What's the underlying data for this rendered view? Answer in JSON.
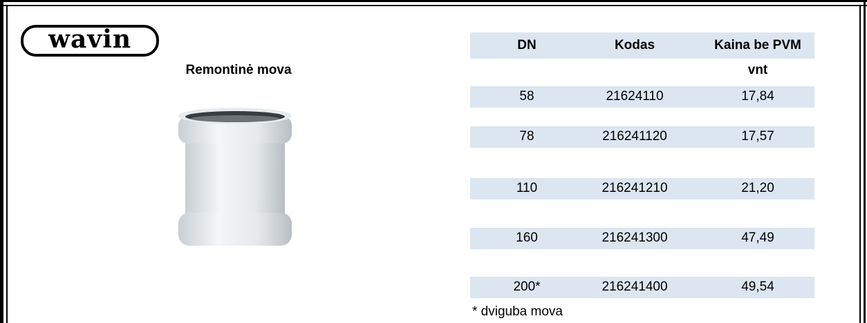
{
  "header": {
    "logo": "wavin",
    "title": "Remontinė mova"
  },
  "table": {
    "columns": [
      "DN",
      "Kodas",
      "Kaina be PVM"
    ],
    "unit": "vnt",
    "rows": [
      [
        "58",
        "21624110",
        "17,84"
      ],
      [
        "78",
        "216241120",
        "17,57"
      ],
      [
        "110",
        "216241210",
        "21,20"
      ],
      [
        "160",
        "216241300",
        "47,49"
      ],
      [
        "200*",
        "216241400",
        "49,54"
      ]
    ]
  },
  "footnote": "* dviguba mova"
}
